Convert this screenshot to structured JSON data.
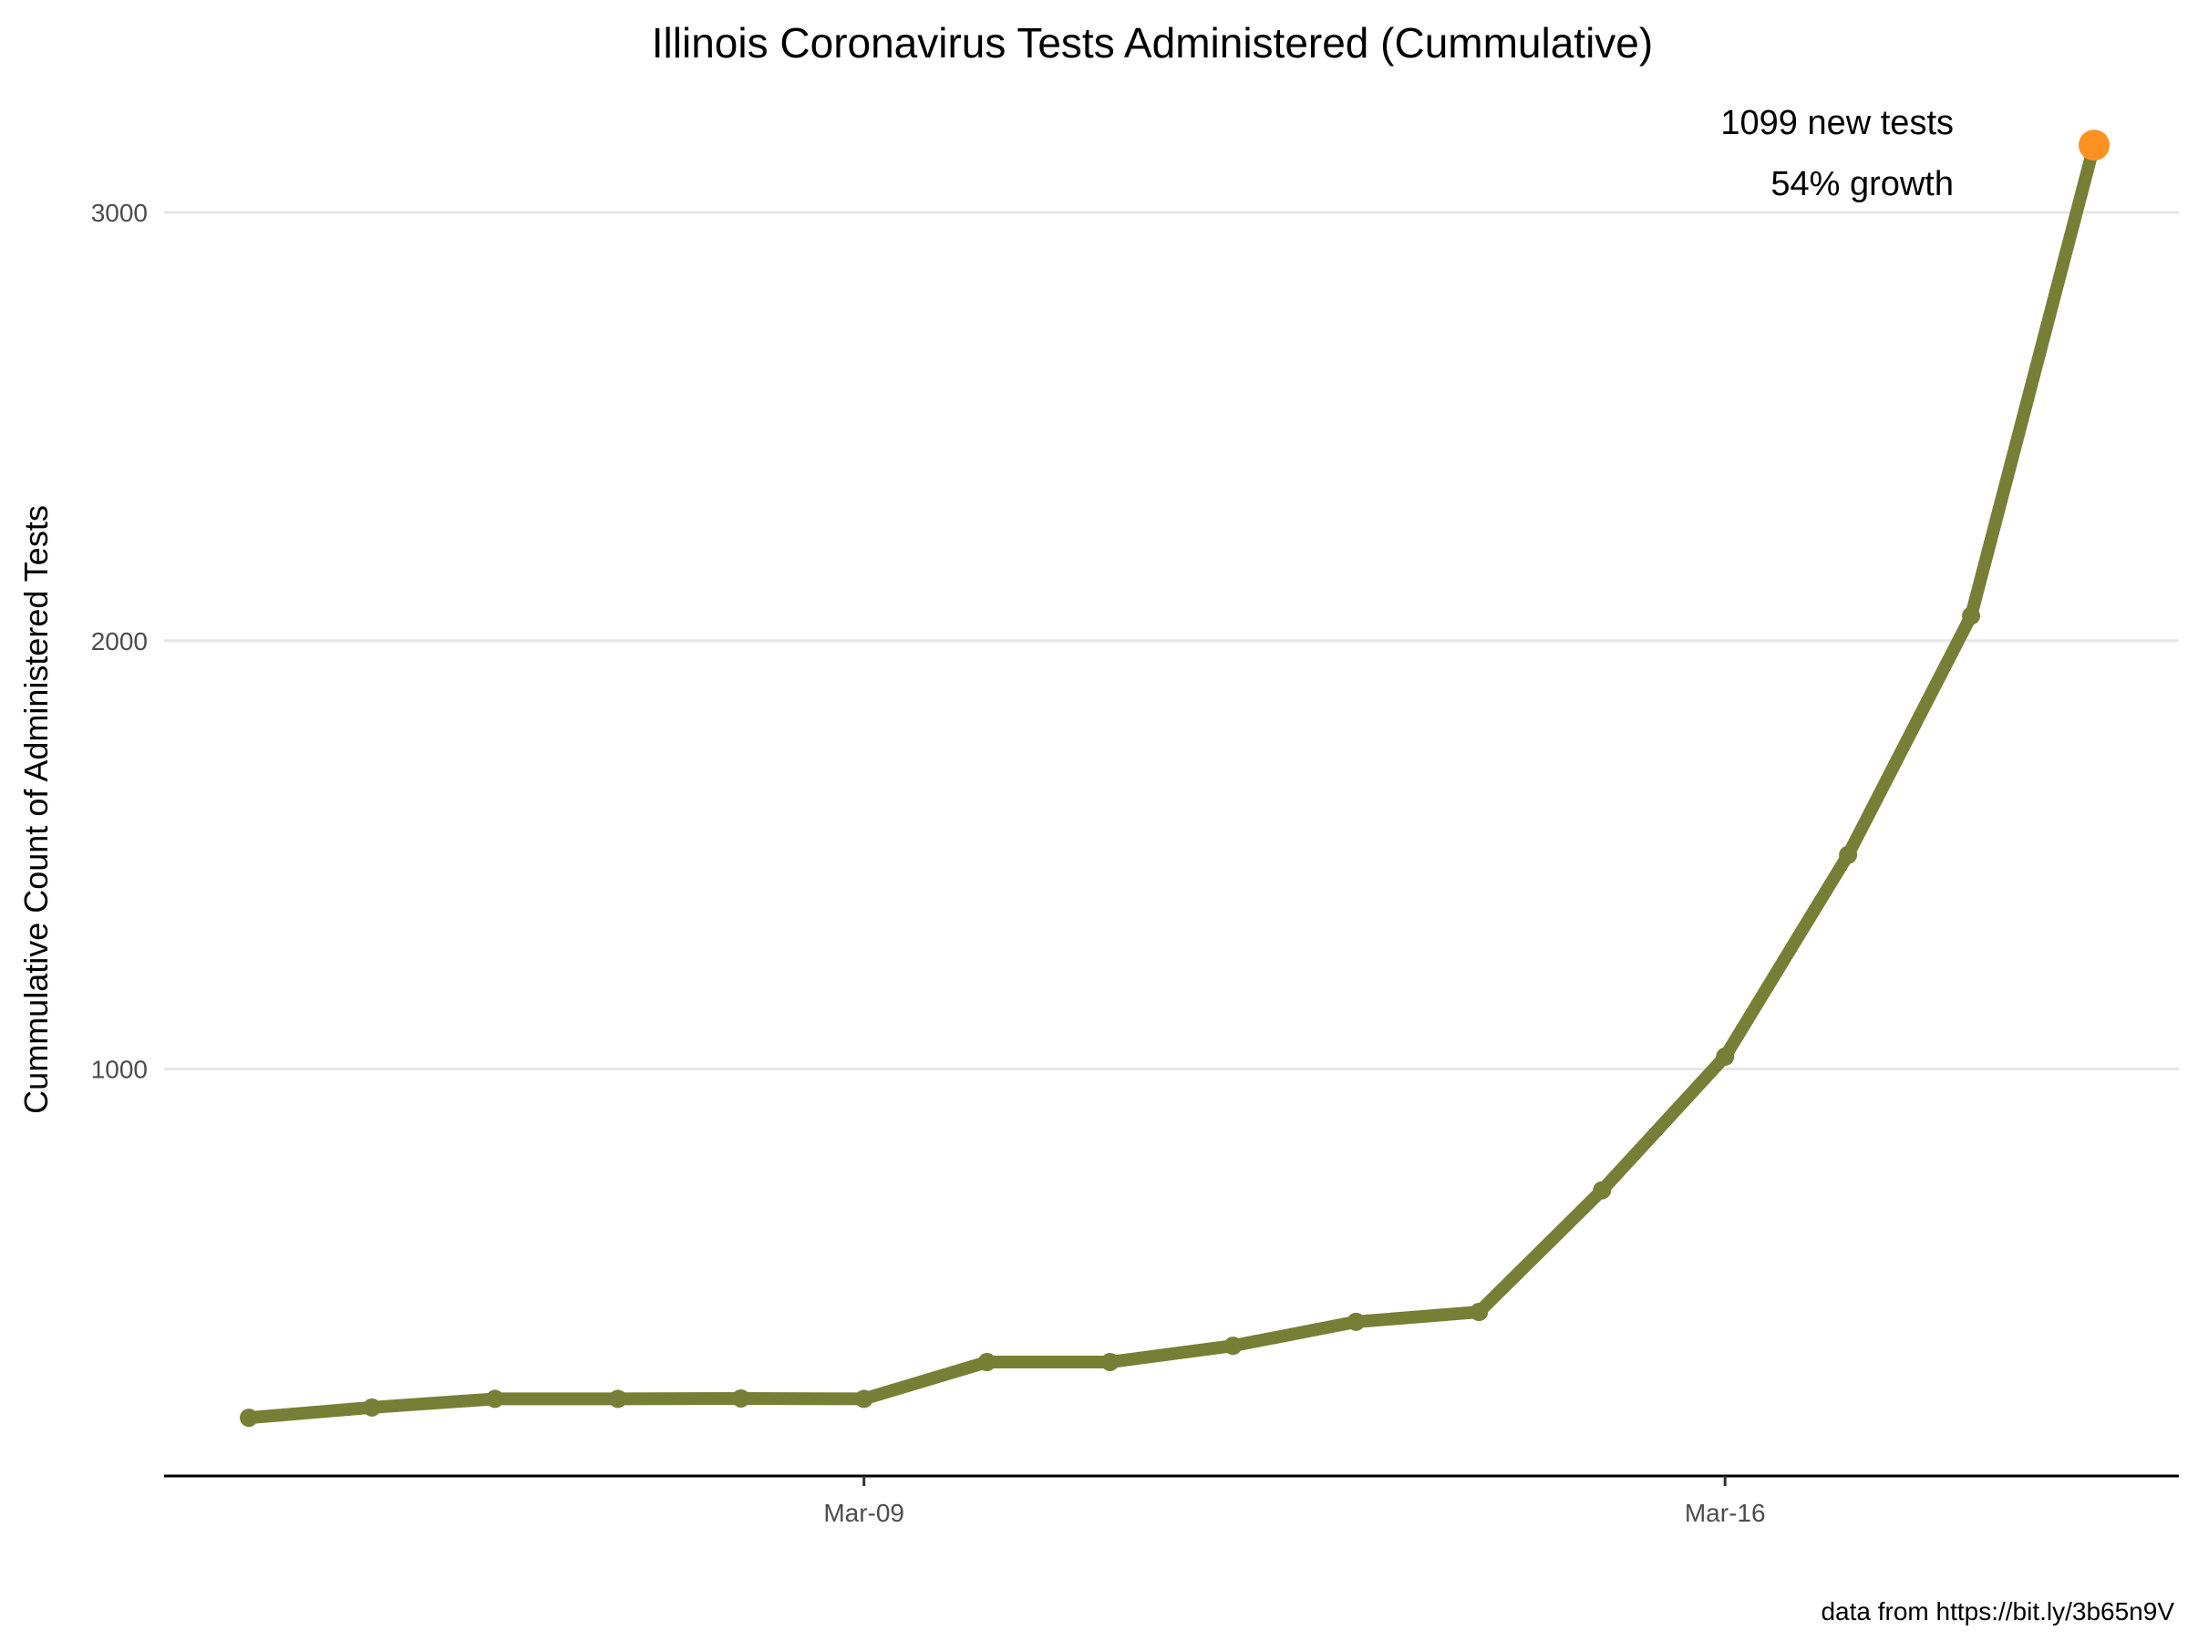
{
  "chart_data": {
    "type": "line",
    "title": "Illinois Coronavirus Tests Administered (Cummulative)",
    "xlabel": "",
    "ylabel": "Cummulative Count of Administered Tests",
    "x": [
      "Mar-04",
      "Mar-05",
      "Mar-06",
      "Mar-07",
      "Mar-08",
      "Mar-09",
      "Mar-10",
      "Mar-11",
      "Mar-12",
      "Mar-13",
      "Mar-14",
      "Mar-15",
      "Mar-16",
      "Mar-17",
      "Mar-18",
      "Mar-19"
    ],
    "values": [
      186,
      210,
      230,
      230,
      231,
      230,
      316,
      316,
      354,
      410,
      433,
      717,
      1029,
      1500,
      2058,
      3157
    ],
    "x_ticks": [
      "Mar-09",
      "Mar-16"
    ],
    "y_ticks": [
      1000,
      2000,
      3000
    ],
    "ylim": [
      50,
      3300
    ],
    "grid": "horizontal major only",
    "annotation": [
      "1099 new tests",
      "54% growth"
    ],
    "caption": "data from https://bit.ly/3b65n9V",
    "colors": {
      "line": "#767f35",
      "highlight": "#ff9122",
      "grid": "#e6e6e6",
      "tick_text": "#4d4d4d"
    }
  }
}
